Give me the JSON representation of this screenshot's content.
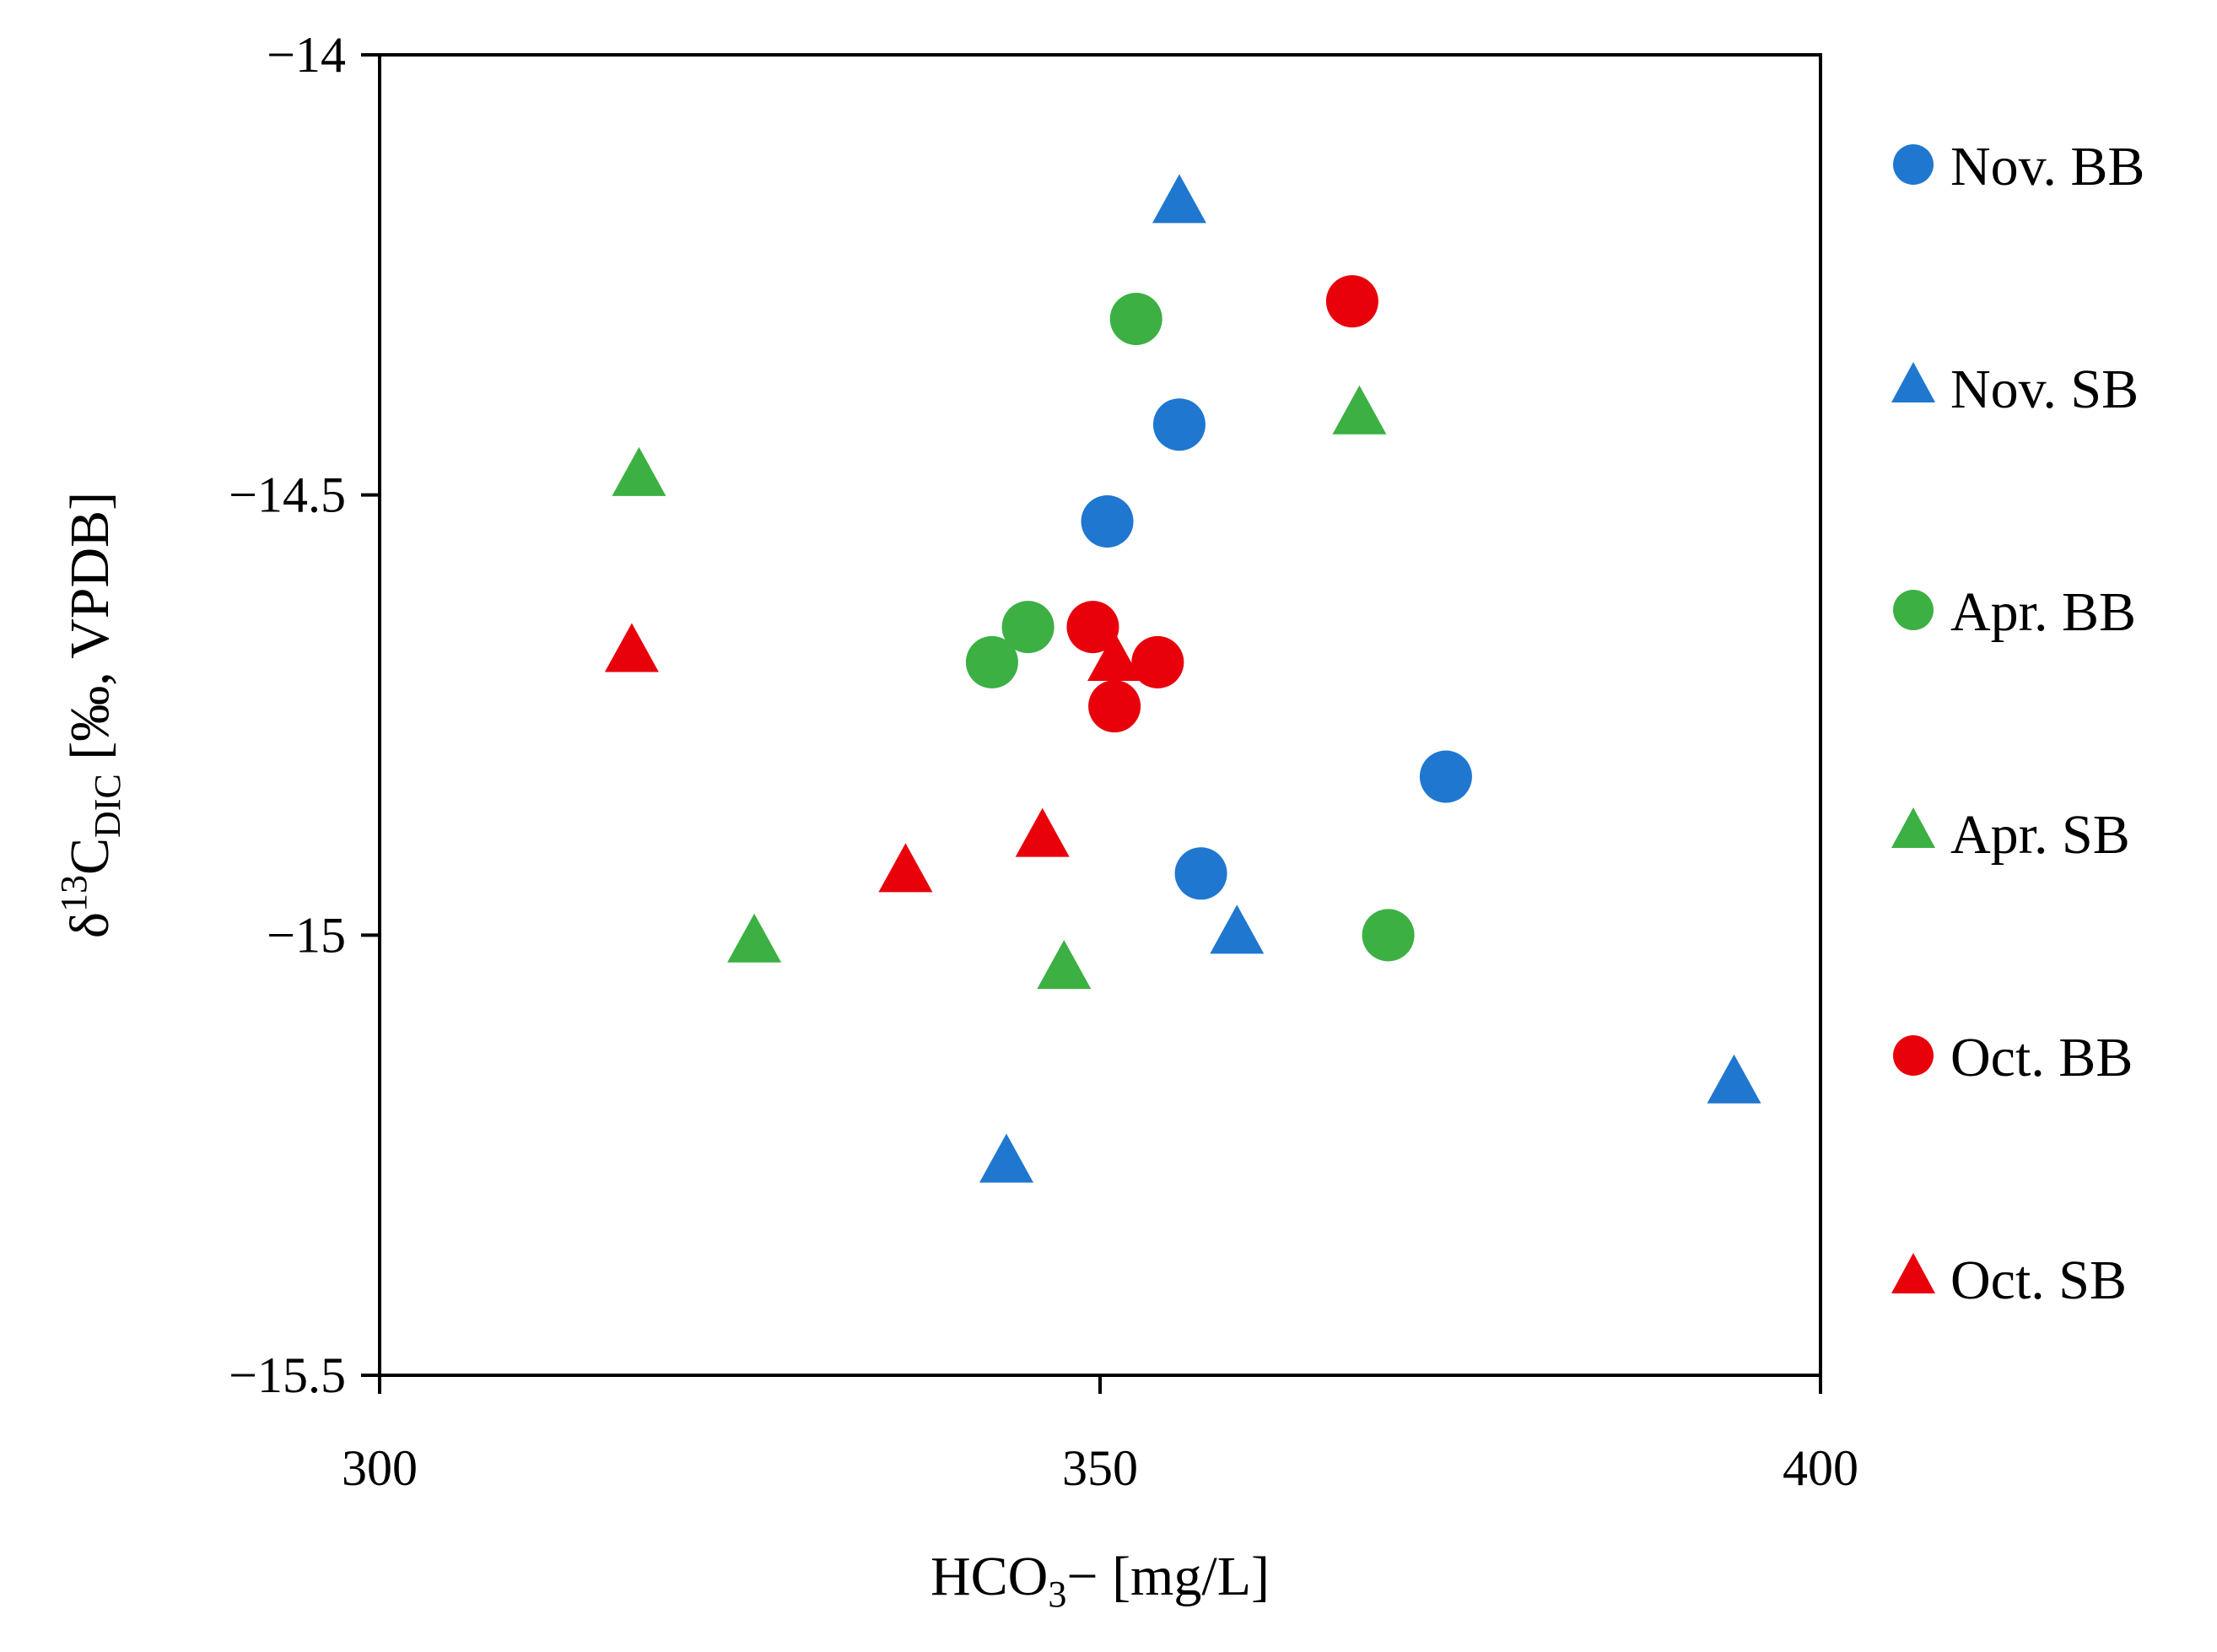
{
  "chart_data": {
    "type": "scatter",
    "title": "",
    "xlabel": {
      "main": "HCO",
      "sub": "3",
      "tail": "− [mg/L]"
    },
    "ylabel": {
      "prefix": "δ",
      "sup": "13",
      "main": "C",
      "sub": "DIC",
      "tail": " [‰, VPDB]"
    },
    "xlim": [
      300,
      400
    ],
    "ylim": [
      -15.5,
      -14
    ],
    "xticks": [
      300,
      350,
      400
    ],
    "xtick_labels": [
      "300",
      "350",
      "400"
    ],
    "yticks": [
      -14,
      -14.5,
      -15,
      -15.5
    ],
    "ytick_labels": [
      "−14",
      "−14.5",
      "−15",
      "−15.5"
    ],
    "grid": false,
    "legend_position": "right",
    "series": [
      {
        "name": "Nov. BB",
        "marker": "circle",
        "color": "#1f77d0",
        "points": [
          [
            355.5,
            -14.42
          ],
          [
            350.5,
            -14.53
          ],
          [
            374,
            -14.82
          ],
          [
            357,
            -14.93
          ]
        ]
      },
      {
        "name": "Nov. SB",
        "marker": "triangle",
        "color": "#1f77d0",
        "points": [
          [
            355.5,
            -14.17
          ],
          [
            359.5,
            -15.0
          ],
          [
            394,
            -15.17
          ],
          [
            343.5,
            -15.26
          ]
        ]
      },
      {
        "name": "Apr. BB",
        "marker": "circle",
        "color": "#3cb043",
        "points": [
          [
            352.5,
            -14.3
          ],
          [
            345,
            -14.65
          ],
          [
            342.5,
            -14.69
          ],
          [
            370,
            -15.0
          ]
        ]
      },
      {
        "name": "Apr. SB",
        "marker": "triangle",
        "color": "#3cb043",
        "points": [
          [
            368,
            -14.41
          ],
          [
            318,
            -14.48
          ],
          [
            326,
            -15.01
          ],
          [
            347.5,
            -15.04
          ]
        ]
      },
      {
        "name": "Oct. BB",
        "marker": "circle",
        "color": "#e8000b",
        "points": [
          [
            367.5,
            -14.28
          ],
          [
            349.5,
            -14.65
          ],
          [
            354,
            -14.69
          ],
          [
            351,
            -14.74
          ]
        ]
      },
      {
        "name": "Oct. SB",
        "marker": "triangle",
        "color": "#e8000b",
        "points": [
          [
            317.5,
            -14.68
          ],
          [
            336.5,
            -14.93
          ],
          [
            346,
            -14.89
          ],
          [
            351,
            -14.69
          ]
        ]
      }
    ]
  }
}
